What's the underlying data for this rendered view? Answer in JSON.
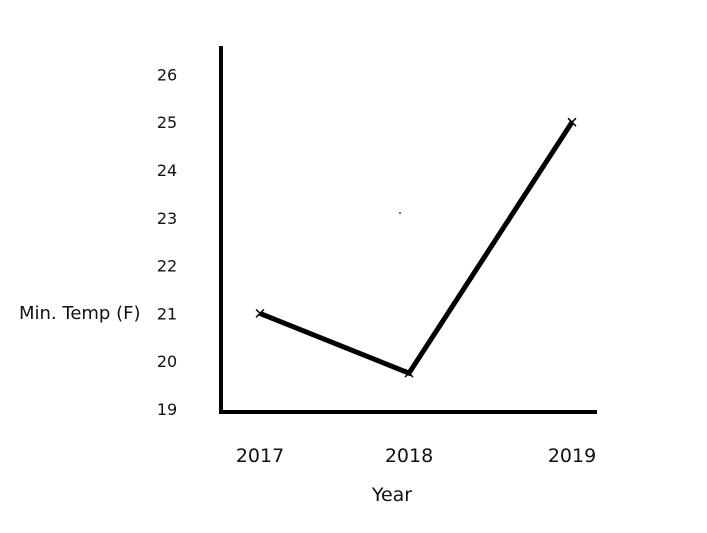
{
  "chart_data": {
    "type": "line",
    "x": [
      "2017",
      "2018",
      "2019"
    ],
    "series": [
      {
        "values": [
          21,
          19.75,
          25
        ]
      }
    ],
    "xlabel": "Year",
    "ylabel": "Min. Temp (F)",
    "yticks": [
      19,
      20,
      21,
      22,
      23,
      24,
      25,
      26
    ],
    "ylim": [
      19,
      26
    ],
    "grid": false,
    "marker": "x",
    "line_color": "#000000"
  }
}
